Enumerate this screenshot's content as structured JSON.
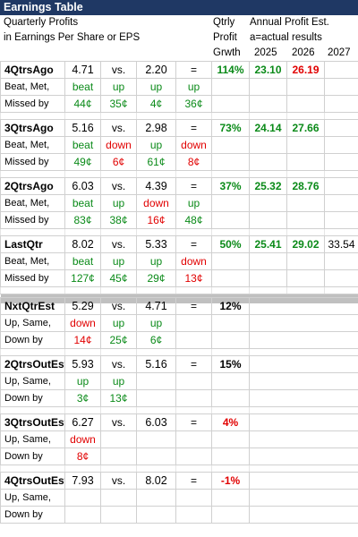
{
  "title": "Earnings Table",
  "header": {
    "left_line1": "Quarterly Profits",
    "left_line2": "in Earnings Per Share or EPS",
    "mid_line1": "Qtrly",
    "mid_line2": "Profit",
    "mid_line3": "Grwth",
    "right_line1": "Annual Profit Est.",
    "right_line2": "a=actual results",
    "years": [
      "2025",
      "2026",
      "2027"
    ]
  },
  "blocks": [
    {
      "label": "4QtrsAgo",
      "eps": "4.71",
      "vs": "vs.",
      "prior": "2.20",
      "eq": "=",
      "growth": "114%",
      "est": [
        "23.10",
        "26.19",
        ""
      ],
      "row2_label": "Beat, Met,",
      "row2": [
        "beat",
        "up",
        "up",
        "up"
      ],
      "row3_label": "Missed by",
      "row3": [
        "44¢",
        "35¢",
        "4¢",
        "36¢"
      ]
    },
    {
      "label": "3QtrsAgo",
      "eps": "5.16",
      "vs": "vs.",
      "prior": "2.98",
      "eq": "=",
      "growth": "73%",
      "est": [
        "24.14",
        "27.66",
        ""
      ],
      "row2_label": "Beat, Met,",
      "row2": [
        "beat",
        "down",
        "up",
        "down"
      ],
      "row3_label": "Missed by",
      "row3": [
        "49¢",
        "6¢",
        "61¢",
        "8¢"
      ]
    },
    {
      "label": "2QtrsAgo",
      "eps": "6.03",
      "vs": "vs.",
      "prior": "4.39",
      "eq": "=",
      "growth": "37%",
      "est": [
        "25.32",
        "28.76",
        ""
      ],
      "row2_label": "Beat, Met,",
      "row2": [
        "beat",
        "up",
        "down",
        "up"
      ],
      "row3_label": "Missed by",
      "row3": [
        "83¢",
        "38¢",
        "16¢",
        "48¢"
      ]
    },
    {
      "label": "LastQtr",
      "eps": "8.02",
      "vs": "vs.",
      "prior": "5.33",
      "eq": "=",
      "growth": "50%",
      "est": [
        "25.41",
        "29.02",
        "33.54"
      ],
      "row2_label": "Beat, Met,",
      "row2": [
        "beat",
        "up",
        "up",
        "down"
      ],
      "row3_label": "Missed by",
      "row3": [
        "127¢",
        "45¢",
        "29¢",
        "13¢"
      ]
    }
  ],
  "future": [
    {
      "label": "NxtQtrEst",
      "eps": "5.29",
      "vs": "vs.",
      "prior": "4.71",
      "eq": "=",
      "growth": "12%",
      "row2_label": "Up, Same,",
      "row2": [
        "down",
        "up",
        "up"
      ],
      "row3_label": "Down by",
      "row3": [
        "14¢",
        "25¢",
        "6¢"
      ]
    },
    {
      "label": "2QtrsOutEst",
      "eps": "5.93",
      "vs": "vs.",
      "prior": "5.16",
      "eq": "=",
      "growth": "15%",
      "row2_label": "Up, Same,",
      "row2": [
        "up",
        "up",
        ""
      ],
      "row3_label": "Down by",
      "row3": [
        "3¢",
        "13¢",
        ""
      ]
    },
    {
      "label": "3QtrsOutEst",
      "eps": "6.27",
      "vs": "vs.",
      "prior": "6.03",
      "eq": "=",
      "growth": "4%",
      "row2_label": "Up, Same,",
      "row2": [
        "down",
        "",
        ""
      ],
      "row3_label": "Down by",
      "row3": [
        "8¢",
        "",
        ""
      ]
    },
    {
      "label": "4QtrsOutEst",
      "eps": "7.93",
      "vs": "vs.",
      "prior": "8.02",
      "eq": "=",
      "growth": "-1%",
      "row2_label": "Up, Same,",
      "row2": [
        "",
        "",
        ""
      ],
      "row3_label": "Down by",
      "row3": [
        "",
        "",
        ""
      ]
    }
  ],
  "colors": {
    "title_bg": "#1f3864",
    "green": "#0a8a18",
    "red": "#e10000",
    "separator": "#c0c0c0"
  }
}
